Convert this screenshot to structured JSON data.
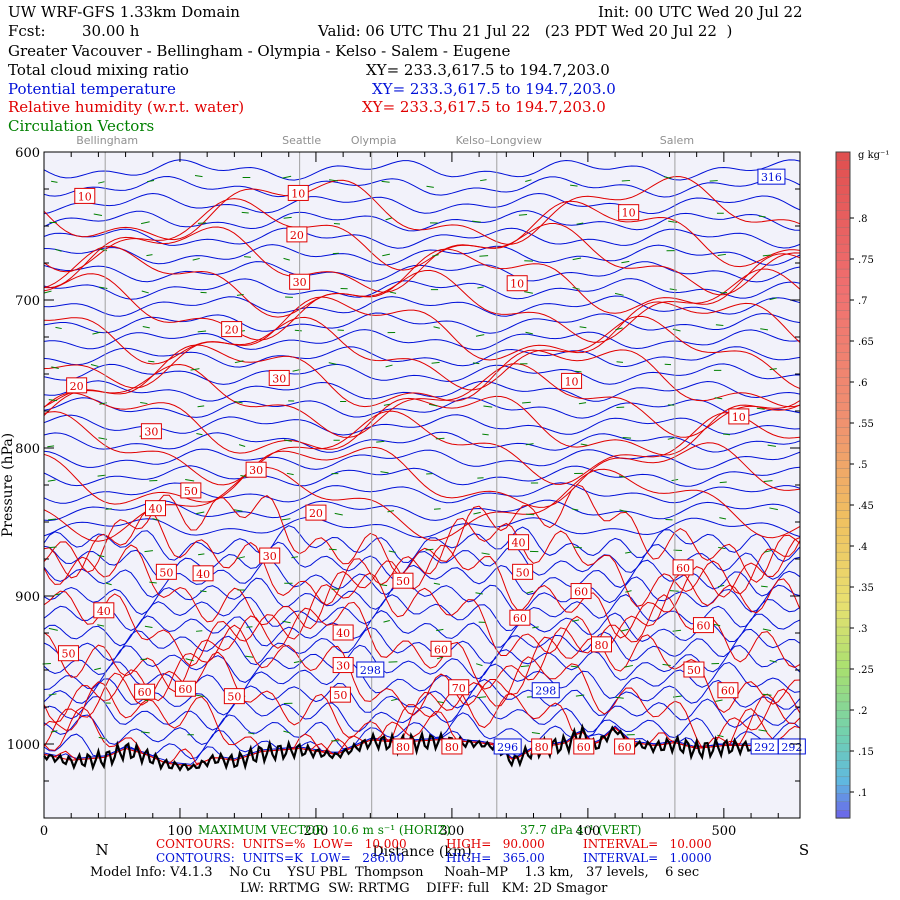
{
  "header": {
    "model": "UW WRF-GFS 1.33km Domain",
    "init": "Init: 00 UTC Wed 20 Jul 22",
    "fcst_label": "Fcst:",
    "fcst_value": "30.00 h",
    "valid": "Valid: 06 UTC Thu 21 Jul 22   (23 PDT Wed 20 Jul 22  )",
    "region": "Greater Vacouver - Bellingham - Olympia - Kelso - Salem - Eugene",
    "field_cloud": "Total cloud mixing ratio",
    "xy_cloud": "XY= 233.3,617.5 to 194.7,203.0",
    "field_theta": "Potential temperature",
    "xy_theta": "XY= 233.3,617.5 to 194.7,203.0",
    "field_rh": "Relative humidity (w.r.t. water)",
    "xy_rh": "XY= 233.3,617.5 to 194.7,203.0",
    "field_vec": "Circulation Vectors"
  },
  "colors": {
    "theta": "#0010d8",
    "rh": "#e00000",
    "vectors": "#008000",
    "terrain": "#000000",
    "city_lines": "#a0a0a0",
    "plot_bg": "#f2f2fa"
  },
  "chart_data": {
    "type": "line",
    "xlabel": "Distance (km)",
    "ylabel": "Pressure (hPa)",
    "xlim": [
      0,
      556
    ],
    "ylim": [
      1050,
      600
    ],
    "x_ticks": [
      0,
      100,
      200,
      300,
      400,
      500
    ],
    "y_ticks": [
      600,
      700,
      800,
      900,
      1000
    ],
    "direction_left": "N",
    "direction_right": "S",
    "cities": [
      {
        "name": "Bellingham",
        "x": 45
      },
      {
        "name": "Seattle",
        "x": 188
      },
      {
        "name": "Olympia",
        "x": 241
      },
      {
        "name": "Kelso–Longview",
        "x": 333
      },
      {
        "name": "Salem",
        "x": 464
      }
    ],
    "terrain_top_hPa": [
      {
        "x": 0,
        "y": 1008
      },
      {
        "x": 20,
        "y": 1012
      },
      {
        "x": 45,
        "y": 1010
      },
      {
        "x": 60,
        "y": 1004
      },
      {
        "x": 75,
        "y": 1008
      },
      {
        "x": 90,
        "y": 1014
      },
      {
        "x": 110,
        "y": 1016
      },
      {
        "x": 125,
        "y": 1010
      },
      {
        "x": 140,
        "y": 1012
      },
      {
        "x": 160,
        "y": 1006
      },
      {
        "x": 188,
        "y": 1004
      },
      {
        "x": 215,
        "y": 1008
      },
      {
        "x": 241,
        "y": 998
      },
      {
        "x": 260,
        "y": 1000
      },
      {
        "x": 290,
        "y": 998
      },
      {
        "x": 320,
        "y": 1000
      },
      {
        "x": 333,
        "y": 1002
      },
      {
        "x": 345,
        "y": 1012
      },
      {
        "x": 360,
        "y": 1004
      },
      {
        "x": 385,
        "y": 1000
      },
      {
        "x": 395,
        "y": 992
      },
      {
        "x": 405,
        "y": 1002
      },
      {
        "x": 420,
        "y": 990
      },
      {
        "x": 432,
        "y": 1000
      },
      {
        "x": 450,
        "y": 1002
      },
      {
        "x": 464,
        "y": 1000
      },
      {
        "x": 480,
        "y": 1004
      },
      {
        "x": 500,
        "y": 1002
      },
      {
        "x": 530,
        "y": 1002
      },
      {
        "x": 556,
        "y": 1000
      }
    ],
    "theta_contours_K": {
      "low": "286.00",
      "high": "365.00",
      "interval": "1.0000"
    },
    "rh_contours_pct": {
      "low": "10.000",
      "high": "90.000",
      "interval": "10.000"
    },
    "theta_labels": [
      {
        "value": "316",
        "x": 535,
        "y": 617
      },
      {
        "value": "298",
        "x": 240,
        "y": 950
      },
      {
        "value": "298",
        "x": 369,
        "y": 964
      },
      {
        "value": "296",
        "x": 341,
        "y": 1002
      },
      {
        "value": "292",
        "x": 530,
        "y": 1002
      },
      {
        "value": "292",
        "x": 550,
        "y": 1002
      }
    ],
    "rh_labels": [
      {
        "value": "10",
        "x": 30,
        "y": 630
      },
      {
        "value": "10",
        "x": 187,
        "y": 628
      },
      {
        "value": "10",
        "x": 430,
        "y": 641
      },
      {
        "value": "10",
        "x": 348,
        "y": 689
      },
      {
        "value": "10",
        "x": 388,
        "y": 755
      },
      {
        "value": "10",
        "x": 511,
        "y": 779
      },
      {
        "value": "20",
        "x": 186,
        "y": 656
      },
      {
        "value": "20",
        "x": 138,
        "y": 720
      },
      {
        "value": "20",
        "x": 24,
        "y": 758
      },
      {
        "value": "20",
        "x": 200,
        "y": 844
      },
      {
        "value": "30",
        "x": 188,
        "y": 688
      },
      {
        "value": "30",
        "x": 173,
        "y": 753
      },
      {
        "value": "30",
        "x": 79,
        "y": 789
      },
      {
        "value": "30",
        "x": 156,
        "y": 815
      },
      {
        "value": "30",
        "x": 166,
        "y": 873
      },
      {
        "value": "30",
        "x": 220,
        "y": 947
      },
      {
        "value": "40",
        "x": 82,
        "y": 841
      },
      {
        "value": "40",
        "x": 117,
        "y": 885
      },
      {
        "value": "40",
        "x": 44,
        "y": 910
      },
      {
        "value": "40",
        "x": 220,
        "y": 925
      },
      {
        "value": "40",
        "x": 349,
        "y": 864
      },
      {
        "value": "50",
        "x": 108,
        "y": 829
      },
      {
        "value": "50",
        "x": 90,
        "y": 884
      },
      {
        "value": "50",
        "x": 18,
        "y": 939
      },
      {
        "value": "50",
        "x": 264,
        "y": 890
      },
      {
        "value": "50",
        "x": 352,
        "y": 884
      },
      {
        "value": "50",
        "x": 140,
        "y": 968
      },
      {
        "value": "50",
        "x": 218,
        "y": 967
      },
      {
        "value": "50",
        "x": 478,
        "y": 950
      },
      {
        "value": "60",
        "x": 74,
        "y": 965
      },
      {
        "value": "60",
        "x": 104,
        "y": 963
      },
      {
        "value": "60",
        "x": 292,
        "y": 936
      },
      {
        "value": "60",
        "x": 395,
        "y": 897
      },
      {
        "value": "60",
        "x": 350,
        "y": 915
      },
      {
        "value": "60",
        "x": 470,
        "y": 881
      },
      {
        "value": "60",
        "x": 485,
        "y": 920
      },
      {
        "value": "60",
        "x": 503,
        "y": 964
      },
      {
        "value": "60",
        "x": 397,
        "y": 1002
      },
      {
        "value": "60",
        "x": 427,
        "y": 1002
      },
      {
        "value": "70",
        "x": 305,
        "y": 962
      },
      {
        "value": "80",
        "x": 264,
        "y": 1002
      },
      {
        "value": "80",
        "x": 300,
        "y": 1002
      },
      {
        "value": "80",
        "x": 366,
        "y": 1002
      },
      {
        "value": "80",
        "x": 410,
        "y": 933
      }
    ],
    "colorbar": {
      "unit": "g kg⁻¹",
      "labels": [
        ".1",
        ".15",
        ".2",
        ".25",
        ".3",
        ".35",
        ".4",
        ".45",
        ".5",
        ".55",
        ".6",
        ".65",
        ".7",
        ".75",
        ".8"
      ]
    }
  },
  "footer": {
    "max_vector_label": "MAXIMUM VECTOR",
    "max_vector_h": "10.6 m s⁻¹ (HORIZ)",
    "max_vector_v": "37.7 dPa s⁻¹ (VERT)",
    "rh_contours": "CONTOURS:  UNITS=%  LOW=   10.000",
    "rh_high": "HIGH=   90.000",
    "rh_interval": "INTERVAL=   10.000",
    "theta_contours": "CONTOURS:  UNITS=K  LOW=   286.00",
    "theta_high": "HIGH=   365.00",
    "theta_interval": "INTERVAL=   1.0000",
    "model_info": "Model Info: V4.1.3    No Cu    YSU PBL  Thompson     Noah–MP    1.3 km,   37 levels,    6 sec",
    "model_info2": "LW: RRTMG  SW: RRTMG    DIFF: full   KM: 2D Smagor"
  }
}
